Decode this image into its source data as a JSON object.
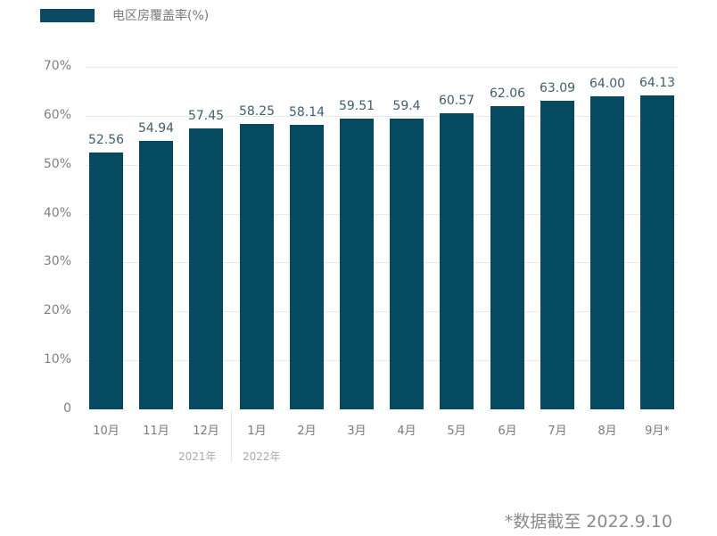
{
  "legend": {
    "label": "电区房覆盖率(%)",
    "color": "#0b4a63"
  },
  "footnote": "*数据截至 2022.9.10",
  "years": [
    {
      "label": "2021年"
    },
    {
      "label": "2022年"
    }
  ],
  "chart_data": {
    "type": "bar",
    "title": "",
    "xlabel": "",
    "ylabel": "",
    "legend": [
      "电区房覆盖率(%)"
    ],
    "legend_position": "top-left",
    "grid": true,
    "ylim": [
      0,
      70
    ],
    "yticks": [
      "0",
      "10%",
      "20%",
      "30%",
      "40%",
      "50%",
      "60%",
      "70%"
    ],
    "categories": [
      "10月",
      "11月",
      "12月",
      "1月",
      "2月",
      "3月",
      "4月",
      "5月",
      "6月",
      "7月",
      "8月",
      "9月*"
    ],
    "values": [
      52.56,
      54.94,
      57.45,
      58.25,
      58.14,
      59.51,
      59.4,
      60.57,
      62.06,
      63.09,
      64.0,
      64.13
    ],
    "value_labels": [
      "52.56",
      "54.94",
      "57.45",
      "58.25",
      "58.14",
      "59.51",
      "59.4",
      "60.57",
      "62.06",
      "63.09",
      "64.00",
      "64.13"
    ],
    "group_labels": [
      {
        "label": "2021年",
        "categories": [
          "10月",
          "11月",
          "12月"
        ]
      },
      {
        "label": "2022年",
        "categories": [
          "1月",
          "2月",
          "3月",
          "4月",
          "5月",
          "6月",
          "7月",
          "8月",
          "9月*"
        ]
      }
    ],
    "bar_color": "#064a62"
  }
}
